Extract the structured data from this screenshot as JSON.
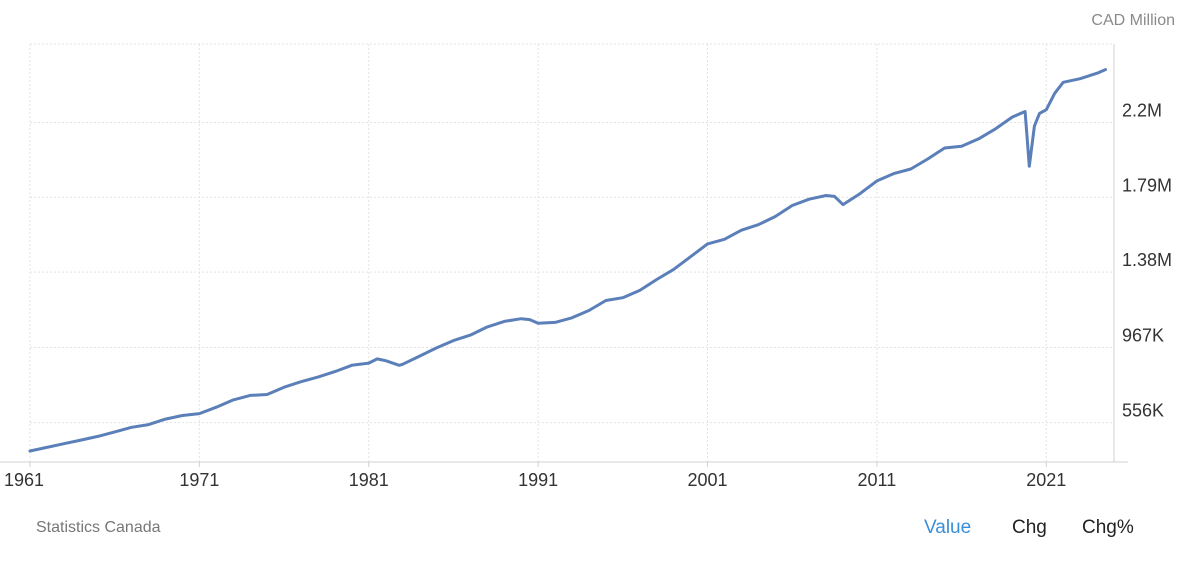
{
  "unit_label": "CAD Million",
  "source": "Statistics Canada",
  "toggles": {
    "value": "Value",
    "chg": "Chg",
    "chg_pct": "Chg%"
  },
  "colors": {
    "line": "#5b7fb8",
    "active_toggle": "#3b8ed8"
  },
  "chart_data": {
    "type": "line",
    "title": "",
    "xlabel": "",
    "ylabel": "CAD Million",
    "y_axis_side": "right",
    "grid": true,
    "x_range": [
      1961,
      2025
    ],
    "y_range": [
      340000,
      2630000
    ],
    "x_ticks": [
      {
        "value": 1961,
        "label": "1961"
      },
      {
        "value": 1971,
        "label": "1971"
      },
      {
        "value": 1981,
        "label": "1981"
      },
      {
        "value": 1991,
        "label": "1991"
      },
      {
        "value": 2001,
        "label": "2001"
      },
      {
        "value": 2011,
        "label": "2011"
      },
      {
        "value": 2021,
        "label": "2021"
      }
    ],
    "y_ticks": [
      {
        "value": 556000,
        "label": "556K"
      },
      {
        "value": 967000,
        "label": "967K"
      },
      {
        "value": 1380000,
        "label": "1.38M"
      },
      {
        "value": 1790000,
        "label": "1.79M"
      },
      {
        "value": 2200000,
        "label": "2.2M"
      }
    ],
    "series": [
      {
        "x": [
          1961,
          1962,
          1963,
          1964,
          1965,
          1966,
          1967,
          1968,
          1969,
          1970,
          1971,
          1972,
          1973,
          1974,
          1975,
          1976,
          1977,
          1978,
          1979,
          1980,
          1981,
          1981.5,
          1982,
          1982.8,
          1983,
          1984,
          1985,
          1986,
          1987,
          1988,
          1989,
          1990,
          1990.5,
          1991,
          1992,
          1993,
          1994,
          1995,
          1996,
          1997,
          1998,
          1999,
          2000,
          2001,
          2002,
          2003,
          2004,
          2005,
          2006,
          2007,
          2008,
          2008.5,
          2009,
          2010,
          2011,
          2012,
          2013,
          2014,
          2015,
          2016,
          2017,
          2018,
          2019,
          2019.75,
          2020,
          2020.3,
          2020.6,
          2021,
          2021.5,
          2022,
          2023,
          2024,
          2024.5
        ],
        "values": [
          400000,
          420000,
          440000,
          460000,
          480000,
          505000,
          530000,
          545000,
          575000,
          595000,
          605000,
          640000,
          680000,
          705000,
          710000,
          750000,
          780000,
          805000,
          835000,
          870000,
          882000,
          905000,
          895000,
          870000,
          875000,
          920000,
          965000,
          1005000,
          1035000,
          1080000,
          1110000,
          1125000,
          1120000,
          1100000,
          1105000,
          1130000,
          1170000,
          1225000,
          1240000,
          1280000,
          1340000,
          1395000,
          1465000,
          1535000,
          1560000,
          1610000,
          1640000,
          1685000,
          1745000,
          1780000,
          1800000,
          1795000,
          1750000,
          1810000,
          1880000,
          1920000,
          1945000,
          2000000,
          2060000,
          2070000,
          2110000,
          2165000,
          2230000,
          2260000,
          1960000,
          2180000,
          2250000,
          2270000,
          2360000,
          2420000,
          2440000,
          2470000,
          2490000
        ]
      }
    ]
  }
}
